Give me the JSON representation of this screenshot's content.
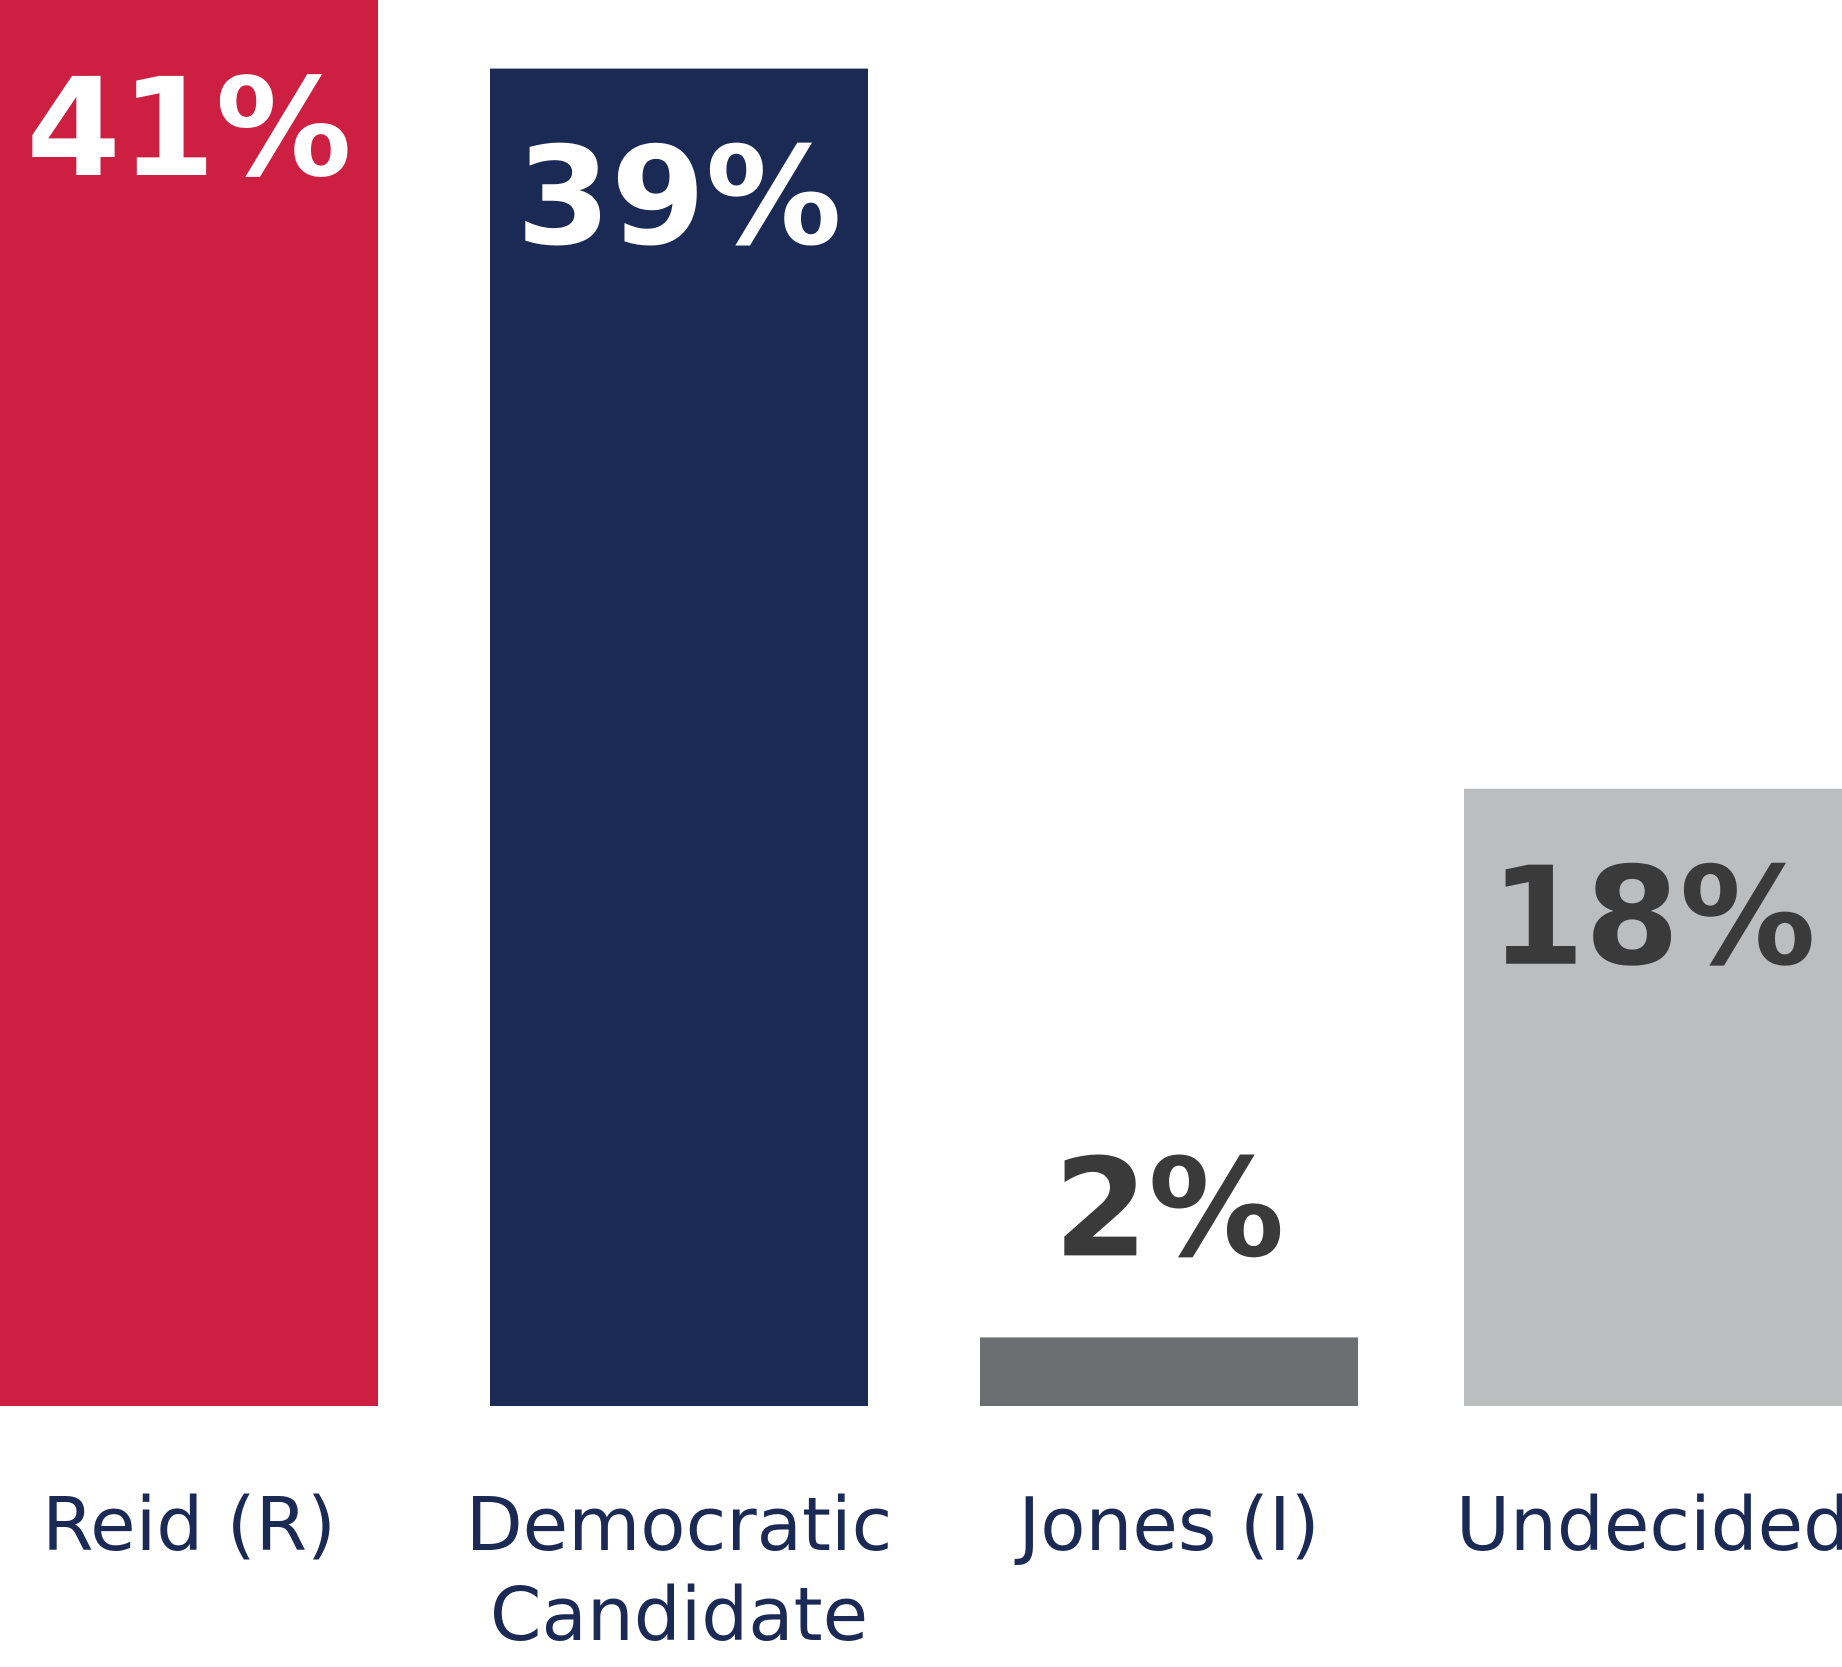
{
  "chart_data": {
    "type": "bar",
    "categories": [
      [
        "Reid (R)"
      ],
      [
        "Democratic",
        "Candidate"
      ],
      [
        "Jones (I)"
      ],
      [
        "Undecided"
      ]
    ],
    "values": [
      41,
      39,
      2,
      18
    ],
    "value_labels": [
      "41%",
      "39%",
      "2%",
      "18%"
    ],
    "ylim": [
      0,
      41
    ],
    "grid": false,
    "legend": "none",
    "colors": {
      "bars": [
        "#cc1f41",
        "#1a2a54",
        "#6d6e71",
        "#bcbdbf"
      ],
      "value_text": [
        "#ffffff",
        "#ffffff",
        "#3a3a3a",
        "#3a3a3a"
      ],
      "category_text": "#1a2a54"
    }
  }
}
